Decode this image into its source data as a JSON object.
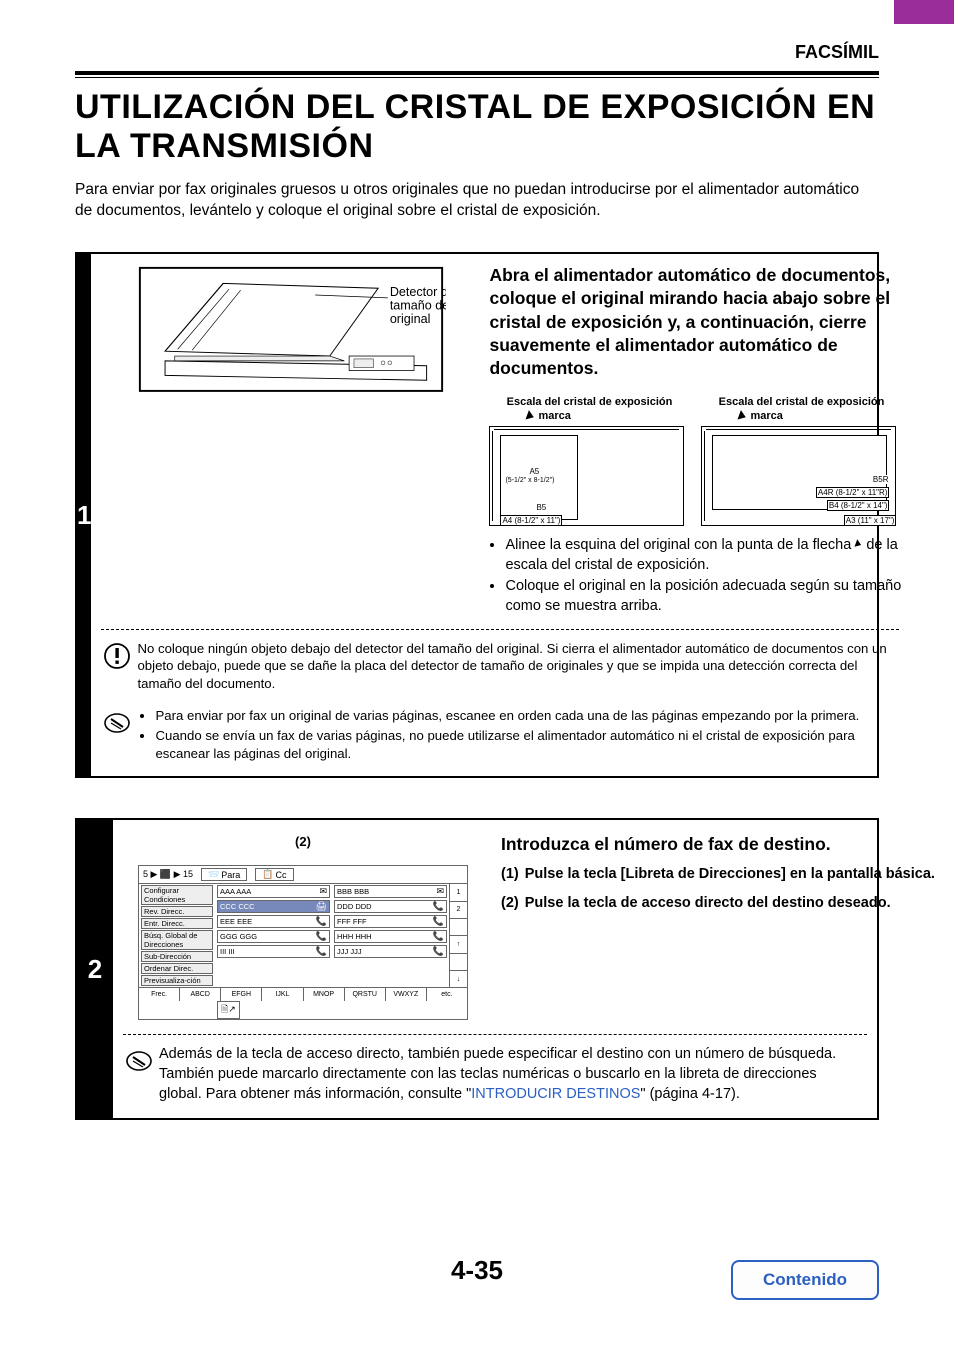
{
  "header": {
    "section_label": "FACSÍMIL"
  },
  "title": "UTILIZACIÓN DEL CRISTAL DE EXPOSICIÓN EN LA TRANSMISIÓN",
  "intro": "Para enviar por fax originales gruesos u otros originales que no puedan introducirse por el alimentador automático de documentos, levántelo y coloque el original sobre el cristal de exposición.",
  "step1": {
    "num": "1",
    "callout": "Detector del tamaño del original",
    "instruction": "Abra el alimentador automático de documentos, coloque el original mirando hacia abajo sobre el cristal de exposición y, a continuación, cierre suavemente el alimentador automático de documentos.",
    "scale_title": "Escala del cristal de exposición",
    "marca": "marca",
    "sizes_left": {
      "a5": "A5",
      "a5_dim": "(5-1/2\" x 8-1/2\")",
      "b5": "B5",
      "a4": "A4 (8-1/2\" x 11\")"
    },
    "sizes_right": {
      "b5r": "B5R",
      "a4r": "A4R (8-1/2\" x 11\"R)",
      "b4": "B4 (8-1/2\" x 14\")",
      "a3": "A3 (11\" x 17\")"
    },
    "bullet1_a": "Alinee la esquina del original con la punta de la flecha ",
    "bullet1_b": " de la escala del cristal de exposición.",
    "bullet2": "Coloque el original en la posición adecuada según su tamaño como se muestra arriba.",
    "warning": "No coloque ningún objeto debajo del detector del tamaño del original. Si cierra el alimentador automático de documentos con un objeto debajo, puede que se dañe la placa del detector de tamaño de originales y que se impida una detección correcta del tamaño del documento.",
    "note_li1": "Para enviar por fax un original de varias páginas, escanee en orden cada una de las páginas empezando por la primera.",
    "note_li2": "Cuando se envía un fax de varias páginas, no puede utilizarse el alimentador automático ni el cristal de exposición para escanear las páginas del original."
  },
  "step2": {
    "num": "2",
    "callout": "(2)",
    "heading": "Introduzca el número de fax de destino.",
    "sub1_n": "(1)",
    "sub1_t": "Pulse la tecla [Libreta de Direcciones] en la pantalla básica.",
    "sub2_n": "(2)",
    "sub2_t": "Pulse la tecla de acceso directo del destino deseado.",
    "ui": {
      "top_left": "5 ▶ ⬛ ▶ 15",
      "para": "Para",
      "cc": "Cc",
      "left_buttons": [
        "Configurar Condiciones",
        "Rev. Direcc.",
        "Entr. Direcc.",
        "Búsq. Global de Direcciones",
        "Sub-Dirección",
        "Ordenar Direc.",
        "Previsualiza-ción"
      ],
      "addr": [
        [
          "AAA AAA",
          "BBB BBB"
        ],
        [
          "CCC CCC",
          "DDD DDD"
        ],
        [
          "EEE EEE",
          "FFF FFF"
        ],
        [
          "GGG GGG",
          "HHH HHH"
        ],
        [
          "III III",
          "JJJ JJJ"
        ]
      ],
      "scroll": [
        "1",
        "2",
        "",
        "↑",
        "",
        "↓"
      ],
      "tabs": [
        "Frec.",
        "ABCD",
        "EFGH",
        "IJKL",
        "MNOP",
        "QRSTU",
        "VWXYZ",
        "etc."
      ]
    },
    "note_a": "Además de la tecla de acceso directo, también puede especificar el destino con un número de búsqueda. También puede marcarlo directamente con las teclas numéricas o buscarlo en la libreta de direcciones global. Para obtener más información, consulte \"",
    "note_link": "INTRODUCIR DESTINOS",
    "note_b": "\" (página 4-17)."
  },
  "footer": {
    "page": "4-35",
    "contents": "Contenido"
  },
  "colors": {
    "purple": "#9b2d9b",
    "link": "#2b5fc2"
  }
}
